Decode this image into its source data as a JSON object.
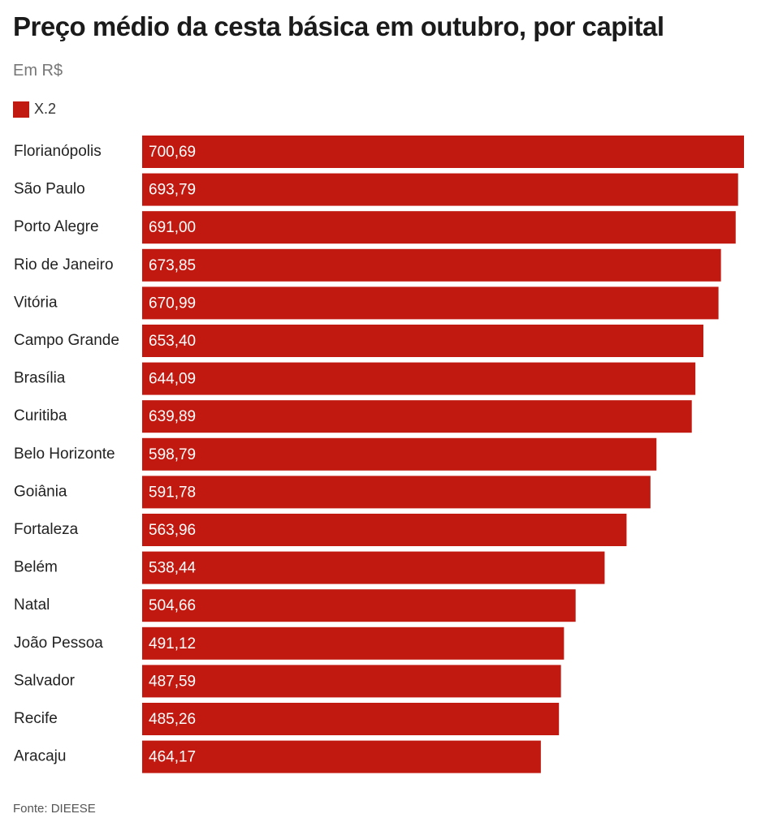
{
  "chart_data": {
    "type": "bar",
    "orientation": "horizontal",
    "title": "Preço médio da cesta básica em outubro, por capital",
    "subtitle": "Em R$",
    "source": "Fonte: DIEESE",
    "categories": [
      "Florianópolis",
      "São Paulo",
      "Porto Alegre",
      "Rio de Janeiro",
      "Vitória",
      "Campo Grande",
      "Brasília",
      "Curitiba",
      "Belo Horizonte",
      "Goiânia",
      "Fortaleza",
      "Belém",
      "Natal",
      "João Pessoa",
      "Salvador",
      "Recife",
      "Aracaju"
    ],
    "series": [
      {
        "name": "X.2",
        "color": "#c1180f",
        "values": [
          700.69,
          693.79,
          691.0,
          673.85,
          670.99,
          653.4,
          644.09,
          639.89,
          598.79,
          591.78,
          563.96,
          538.44,
          504.66,
          491.12,
          487.59,
          485.26,
          464.17
        ],
        "labels": [
          "700,69",
          "693,79",
          "691,00",
          "673,85",
          "670,99",
          "653,40",
          "644,09",
          "639,89",
          "598,79",
          "591,78",
          "563,96",
          "538,44",
          "504,66",
          "491,12",
          "487,59",
          "485,26",
          "464,17"
        ]
      }
    ],
    "xlim": [
      0,
      700.69
    ],
    "grid": false,
    "legend_position": "top-left"
  }
}
